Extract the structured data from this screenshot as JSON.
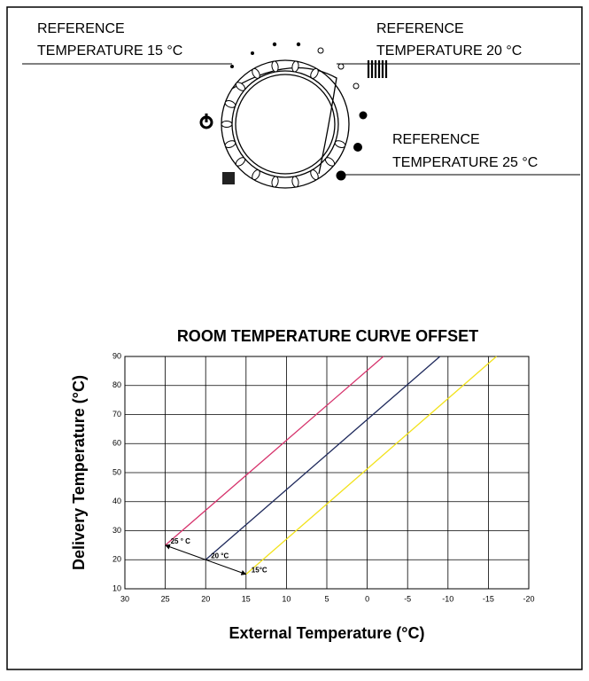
{
  "labels": [
    {
      "line1": "REFERENCE",
      "line2": "TEMPERATURE 15 °C"
    },
    {
      "line1": "REFERENCE",
      "line2": "TEMPERATURE 20 °C"
    },
    {
      "line1": "REFERENCE",
      "line2": "TEMPERATURE 25 °C"
    }
  ],
  "chart_data": {
    "type": "line",
    "title": "ROOM TEMPERATURE CURVE OFFSET",
    "x_label": "External Temperature (°C)",
    "y_label": "Delivery Temperature (°C)",
    "xlim": [
      30,
      -20
    ],
    "xticks": [
      30,
      25,
      20,
      15,
      10,
      5,
      0,
      -5,
      -10,
      -15,
      -20
    ],
    "ylim": [
      10,
      90
    ],
    "yticks": [
      10,
      20,
      30,
      40,
      50,
      60,
      70,
      80,
      90
    ],
    "grid": true,
    "series": [
      {
        "name": "25 ° C",
        "color": "#d6336c",
        "x": [
          25,
          -2
        ],
        "values": [
          25,
          90
        ]
      },
      {
        "name": "20 °C",
        "color": "#1f2a5c",
        "x": [
          20,
          -9
        ],
        "values": [
          20,
          90
        ]
      },
      {
        "name": "15°C",
        "color": "#f2e21b",
        "x": [
          15,
          -16
        ],
        "values": [
          15,
          90
        ]
      }
    ]
  }
}
